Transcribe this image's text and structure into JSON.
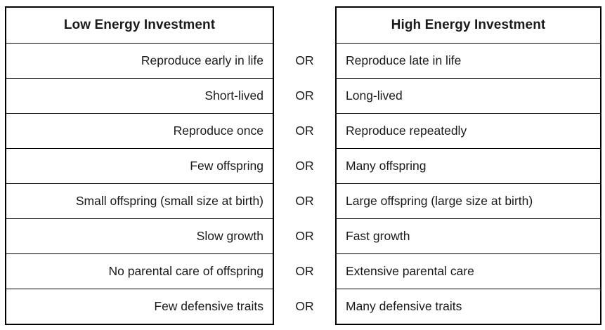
{
  "left_table": {
    "title": "Low Energy Investment"
  },
  "right_table": {
    "title": "High Energy Investment"
  },
  "or_label": "OR",
  "rows": [
    {
      "left": "Reproduce early in life",
      "right": "Reproduce late in life"
    },
    {
      "left": "Short-lived",
      "right": "Long-lived"
    },
    {
      "left": "Reproduce once",
      "right": "Reproduce repeatedly"
    },
    {
      "left": "Few offspring",
      "right": "Many offspring"
    },
    {
      "left": "Small offspring (small size at birth)",
      "right": "Large offspring (large size at birth)"
    },
    {
      "left": "Slow growth",
      "right": "Fast growth"
    },
    {
      "left": "No parental care of offspring",
      "right": "Extensive parental care"
    },
    {
      "left": "Few defensive traits",
      "right": "Many defensive traits"
    }
  ],
  "colors": {
    "border": "#000000",
    "text": "#1a1a1a",
    "background": "#ffffff"
  }
}
